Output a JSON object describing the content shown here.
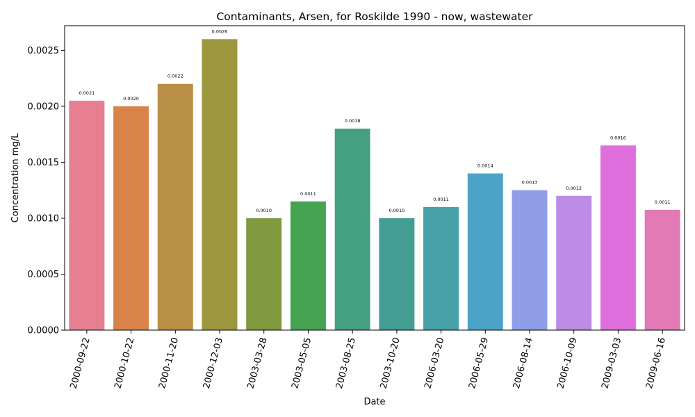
{
  "chart_data": {
    "type": "bar",
    "title": "Contaminants, Arsen, for Roskilde 1990 - now, wastewater",
    "xlabel": "Date",
    "ylabel": "Concentration mg/L",
    "ylim": [
      0,
      0.00272
    ],
    "yticks": [
      0,
      0.0005,
      0.001,
      0.0015,
      0.002,
      0.0025
    ],
    "ytick_labels": [
      "0.0000",
      "0.0005",
      "0.0010",
      "0.0015",
      "0.0020",
      "0.0025"
    ],
    "categories": [
      "2000-09-22",
      "2000-10-22",
      "2000-11-20",
      "2000-12-03",
      "2003-03-28",
      "2003-05-05",
      "2003-08-25",
      "2003-10-20",
      "2006-03-20",
      "2006-05-29",
      "2006-08-14",
      "2006-10-09",
      "2009-03-03",
      "2009-06-16"
    ],
    "values": [
      0.00205,
      0.002,
      0.0022,
      0.0026,
      0.001,
      0.00115,
      0.0018,
      0.001,
      0.0011,
      0.0014,
      0.00125,
      0.0012,
      0.00165,
      0.001075
    ],
    "data_labels": [
      "0.0021",
      "0.0020",
      "0.0022",
      "0.0026",
      "0.0010",
      "0.0011",
      "0.0018",
      "0.0010",
      "0.0011",
      "0.0014",
      "0.0013",
      "0.0012",
      "0.0016",
      "0.0011"
    ],
    "colors": [
      "#e77f91",
      "#d9834a",
      "#b88f45",
      "#9c963f",
      "#7f9a3f",
      "#45a352",
      "#44a081",
      "#439d93",
      "#45a0a8",
      "#4ba4c8",
      "#8f9de6",
      "#bd8ce6",
      "#df6fdd",
      "#e37ab6"
    ],
    "grid": false,
    "legend": "none"
  }
}
